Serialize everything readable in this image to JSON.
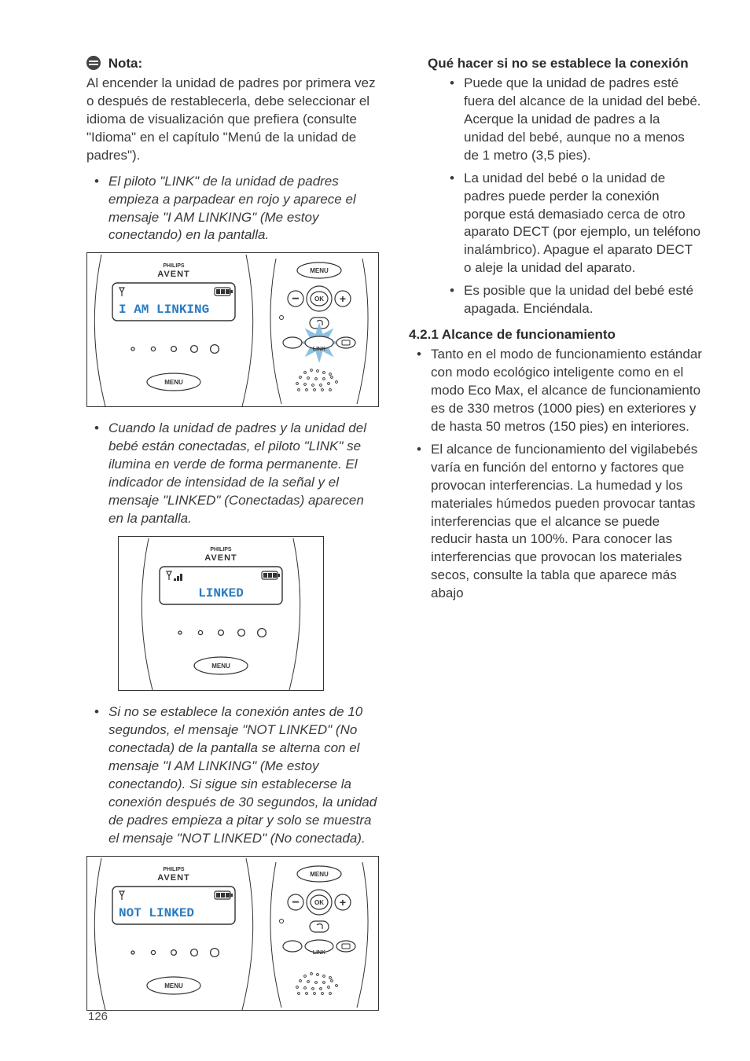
{
  "page_number": "126",
  "note": {
    "heading": "Nota:",
    "body": "Al encender la unidad de padres por primera vez o después de restablecerla, debe seleccionar el idioma de visualización que prefiera (consulte \"Idioma\" en el capítulo \"Menú de la unidad de padres\")."
  },
  "bullets_col1": [
    "El piloto \"LINK\" de la unidad de padres empieza a parpadear en rojo y aparece el mensaje \"I AM LINKING\" (Me estoy conectando) en la pantalla.",
    "Cuando la unidad de padres y la unidad del bebé están conectadas, el piloto \"LINK\" se ilumina en verde de forma permanente. El indicador de intensidad de la señal y el mensaje \"LINKED\" (Conectadas) aparecen en la pantalla.",
    "Si no se establece la conexión antes de 10 segundos, el mensaje \"NOT LINKED\" (No conectada) de la pantalla se alterna con el mensaje \"I AM LINKING\" (Me estoy conectando). Si sigue sin establecerse la conexión después de 30 segundos, la unidad de padres empieza a pitar y solo se muestra el mensaje \"NOT LINKED\" (No conectada)."
  ],
  "devices": {
    "brand_top": "PHILIPS",
    "brand": "AVENT",
    "menu": "MENU",
    "ok": "OK",
    "link": "LINK",
    "minus": "−",
    "plus": "+",
    "screen_linking": "I AM LINKING",
    "screen_linked": "LINKED",
    "screen_notlinked": "NOT LINKED",
    "lcd_text_color": "#2a7cc0",
    "star_color": "#7fb9df",
    "hole_radii": [
      2.0,
      2.6,
      3.4,
      4.4,
      5.4
    ]
  },
  "section_title": "Qué hacer si no se establece la conexión",
  "section_items": [
    "Puede que la unidad de padres esté fuera del alcance de la unidad del bebé. Acerque la unidad de padres a la unidad del bebé, aunque no a menos de 1 metro (3,5 pies).",
    "La unidad del bebé o la unidad de padres puede perder la conexión porque está demasiado cerca de otro aparato DECT (por ejemplo, un teléfono inalámbrico). Apague el aparato DECT o aleje la unidad del aparato.",
    "Es posible que la unidad del bebé esté apagada. Enciéndala."
  ],
  "sect421_title": "4.2.1 Alcance de funcionamiento",
  "sect421_items": [
    "Tanto en el modo de funcionamiento estándar con modo ecológico inteligente como en el modo Eco Max, el alcance de funcionamiento es de 330 metros (1000 pies) en exteriores y de hasta 50 metros (150 pies) en interiores.",
    "El alcance de funcionamiento del vigilabebés varía en función del entorno y factores que provocan interferencias. La humedad y los materiales húmedos pueden provocar tantas interferencias que el alcance se puede reducir hasta un 100%. Para conocer las interferencias que provocan los materiales secos, consulte la tabla que aparece más abajo"
  ],
  "fig": {
    "width_full": 370,
    "height_full": 195,
    "width_narrow": 260,
    "height_narrow": 195,
    "stroke": "#333333",
    "screen_border": "#333333"
  }
}
